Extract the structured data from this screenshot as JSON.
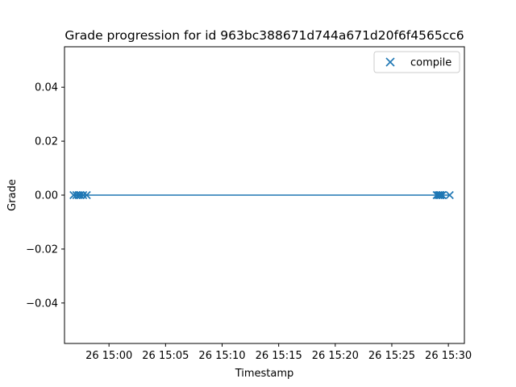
{
  "chart_data": {
    "type": "scatter",
    "title": "Grade progression for id 963bc388671d744a671d20f6f4565cc6",
    "xlabel": "Timestamp",
    "ylabel": "Grade",
    "xlim": [
      "26 14:56:04",
      "26 15:31:25"
    ],
    "ylim": [
      -0.055,
      0.055
    ],
    "x_ticks": [
      "26 15:00",
      "26 15:05",
      "26 15:10",
      "26 15:15",
      "26 15:20",
      "26 15:25",
      "26 15:30"
    ],
    "y_ticks": [
      0.04,
      0.02,
      0.0,
      -0.02,
      -0.04
    ],
    "y_tick_labels": [
      "0.04",
      "0.02",
      "0.00",
      "−0.02",
      "−0.04"
    ],
    "series": [
      {
        "name": "compile",
        "marker": "x",
        "color": "#1f77b4",
        "line": true,
        "points": [
          {
            "x": "26 14:56:52",
            "y": 0.0
          },
          {
            "x": "26 14:57:07",
            "y": 0.0
          },
          {
            "x": "26 14:57:19",
            "y": 0.0
          },
          {
            "x": "26 14:57:29",
            "y": 0.0
          },
          {
            "x": "26 14:57:43",
            "y": 0.0
          },
          {
            "x": "26 14:58:02",
            "y": 0.0
          },
          {
            "x": "26 15:28:58",
            "y": 0.0
          },
          {
            "x": "26 15:29:07",
            "y": 0.0
          },
          {
            "x": "26 15:29:14",
            "y": 0.0
          },
          {
            "x": "26 15:29:19",
            "y": 0.0
          },
          {
            "x": "26 15:29:28",
            "y": 0.0
          },
          {
            "x": "26 15:30:07",
            "y": 0.0
          }
        ]
      }
    ],
    "legend": {
      "position": "top-right",
      "entries": [
        "compile"
      ]
    },
    "grid": false
  }
}
